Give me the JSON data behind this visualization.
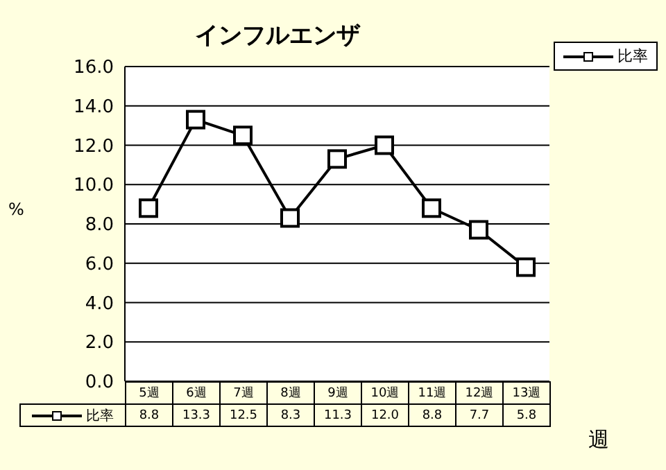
{
  "chart_data": {
    "type": "line",
    "title": "インフルエンザ",
    "ylabel": "%",
    "xlabel": "週",
    "categories": [
      "5週",
      "6週",
      "7週",
      "8週",
      "9週",
      "10週",
      "11週",
      "12週",
      "13週"
    ],
    "series": [
      {
        "name": "比率",
        "color": "#000000",
        "values": [
          8.8,
          13.3,
          12.5,
          8.3,
          11.3,
          12.0,
          8.8,
          7.7,
          5.8
        ],
        "value_labels": [
          "8.8",
          "13.3",
          "12.5",
          "8.3",
          "11.3",
          "12.0",
          "8.8",
          "7.7",
          "5.8"
        ]
      }
    ],
    "ylim": [
      0,
      16
    ],
    "yticks": [
      {
        "value": 0,
        "label": "0.0"
      },
      {
        "value": 2,
        "label": "2.0"
      },
      {
        "value": 4,
        "label": "4.0"
      },
      {
        "value": 6,
        "label": "6.0"
      },
      {
        "value": 8,
        "label": "8.0"
      },
      {
        "value": 10,
        "label": "10.0"
      },
      {
        "value": 12,
        "label": "12.0"
      },
      {
        "value": 14,
        "label": "14.0"
      },
      {
        "value": 16,
        "label": "16.0"
      }
    ],
    "grid": "y",
    "legend": "top right",
    "marker": "square",
    "line_style": "solid"
  }
}
